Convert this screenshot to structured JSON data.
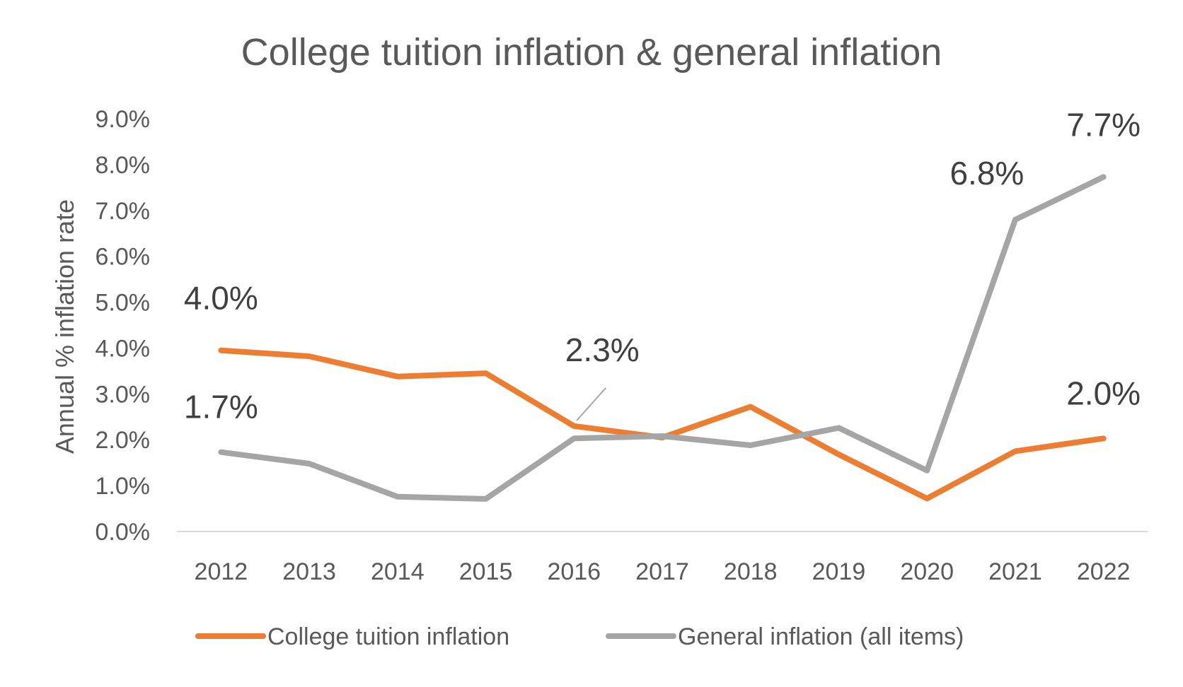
{
  "chart_data": {
    "type": "line",
    "title": "College tuition inflation & general inflation",
    "ylabel": "Annual % inflation rate",
    "xlabel": "",
    "categories": [
      "2012",
      "2013",
      "2014",
      "2015",
      "2016",
      "2017",
      "2018",
      "2019",
      "2020",
      "2021",
      "2022"
    ],
    "ylim": [
      0,
      9
    ],
    "yticks": [
      "0.0%",
      "1.0%",
      "2.0%",
      "3.0%",
      "4.0%",
      "5.0%",
      "6.0%",
      "7.0%",
      "8.0%",
      "9.0%"
    ],
    "grid": false,
    "legend_position": "bottom",
    "series": [
      {
        "name": "College tuition inflation",
        "color": "#ED7D31",
        "values": [
          3.95,
          3.82,
          3.38,
          3.45,
          2.3,
          2.05,
          2.72,
          1.68,
          0.72,
          1.75,
          2.03
        ]
      },
      {
        "name": "General inflation (all items)",
        "color": "#A5A5A5",
        "values": [
          1.73,
          1.48,
          0.76,
          0.71,
          2.03,
          2.08,
          1.88,
          2.26,
          1.33,
          6.8,
          7.73
        ]
      }
    ],
    "annotations": [
      {
        "text": "4.0%",
        "series": 0,
        "index": 0
      },
      {
        "text": "1.7%",
        "series": 1,
        "index": 0
      },
      {
        "text": "2.3%",
        "series": 0,
        "index": 4
      },
      {
        "text": "6.8%",
        "series": 1,
        "index": 9
      },
      {
        "text": "7.7%",
        "series": 1,
        "index": 10
      },
      {
        "text": "2.0%",
        "series": 0,
        "index": 10
      }
    ]
  }
}
